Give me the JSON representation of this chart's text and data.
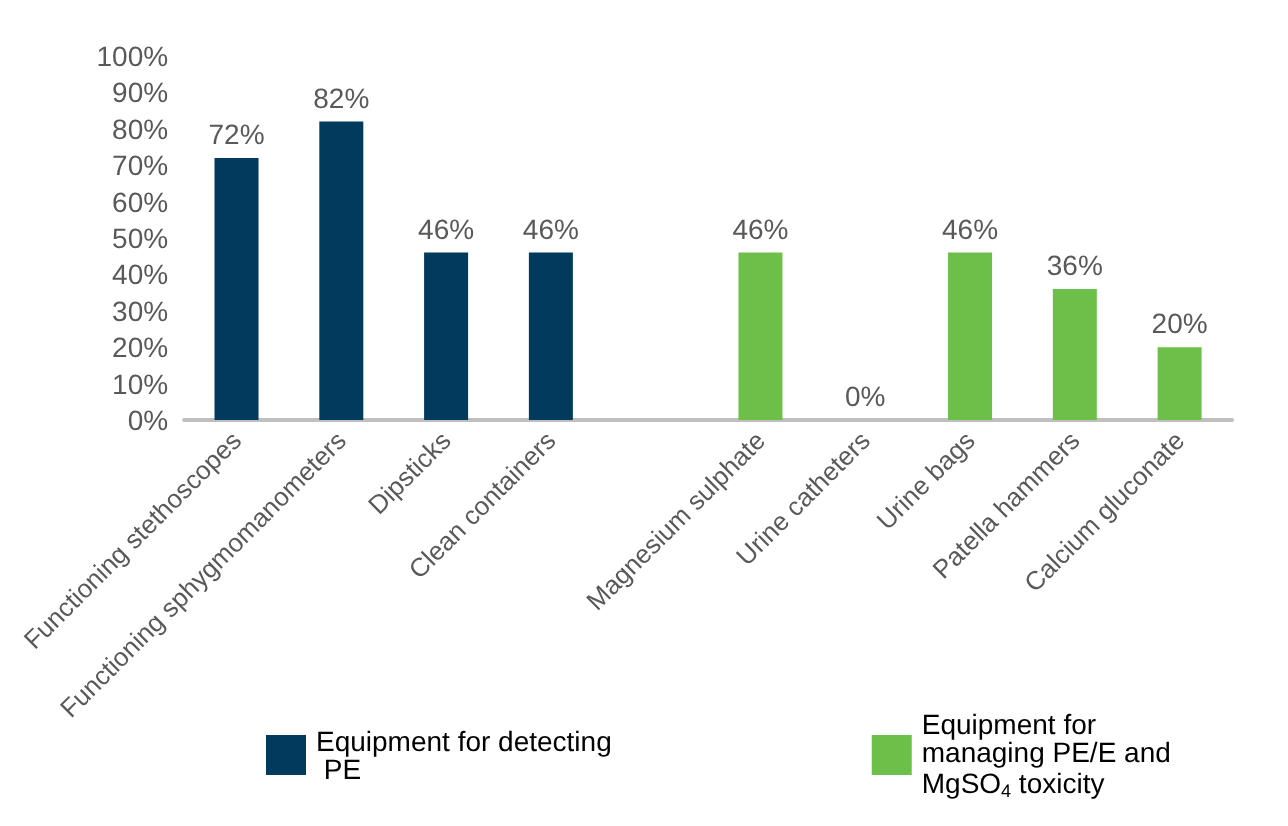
{
  "chart_data": {
    "type": "bar",
    "stacked": true,
    "categories": [
      "Functioning stethoscopes",
      "Functioning sphygmomanometers",
      "Dipsticks",
      "Clean containers",
      null,
      "Magnesium sulphate",
      "Urine catheters",
      "Urine bags",
      "Patella hammers",
      "Calcium gluconate"
    ],
    "series": [
      {
        "name": "Equipment for detecting PE",
        "color": "#003a5d",
        "values": [
          72,
          82,
          46,
          46,
          null,
          null,
          null,
          null,
          null,
          null
        ],
        "value_labels": [
          "72%",
          "82%",
          "46%",
          "46%",
          null,
          null,
          null,
          null,
          null,
          null
        ]
      },
      {
        "name": "Equipment for managing PE/E and MgSO$_{4}$ toxicity",
        "color": "#6cc04a",
        "values": [
          null,
          null,
          null,
          null,
          null,
          46,
          0,
          46,
          36,
          20
        ],
        "value_labels": [
          null,
          null,
          null,
          null,
          null,
          "46%",
          "0%",
          "46%",
          "36%",
          "20%"
        ]
      }
    ],
    "ylim": [
      0,
      100
    ],
    "yticks": [
      {
        "value": 0,
        "label": "0%"
      },
      {
        "value": 10,
        "label": "10%"
      },
      {
        "value": 20,
        "label": "20%"
      },
      {
        "value": 30,
        "label": "30%"
      },
      {
        "value": 40,
        "label": "40%"
      },
      {
        "value": 50,
        "label": "50%"
      },
      {
        "value": 60,
        "label": "60%"
      },
      {
        "value": 70,
        "label": "70%"
      },
      {
        "value": 80,
        "label": "80%"
      },
      {
        "value": 90,
        "label": "90%"
      },
      {
        "value": 100,
        "label": "100%"
      }
    ],
    "grid": false,
    "legend": "bottom"
  }
}
